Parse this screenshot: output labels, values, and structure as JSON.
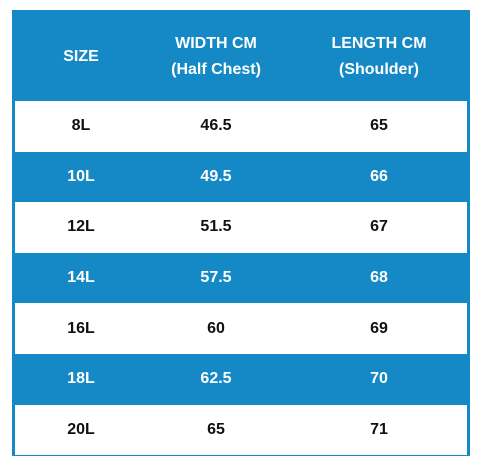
{
  "table": {
    "header": [
      [
        "SIZE"
      ],
      [
        "WIDTH CM",
        "(Half Chest)"
      ],
      [
        "LENGTH CM",
        "(Shoulder)"
      ]
    ],
    "rows": [
      [
        "8L",
        46.5,
        65
      ],
      [
        "10L",
        49.5,
        66
      ],
      [
        "12L",
        51.5,
        67
      ],
      [
        "14L",
        57.5,
        68
      ],
      [
        "16L",
        60,
        69
      ],
      [
        "18L",
        62.5,
        70
      ],
      [
        "20L",
        65,
        71
      ]
    ]
  }
}
